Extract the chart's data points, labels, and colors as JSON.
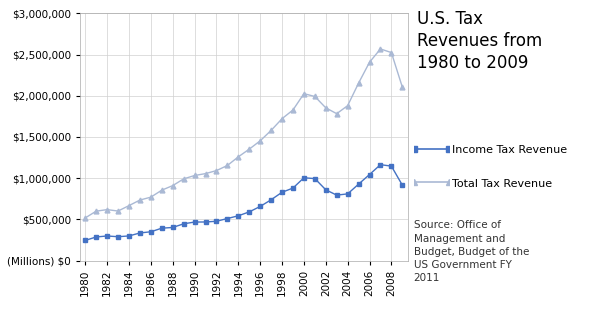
{
  "years": [
    1980,
    1981,
    1982,
    1983,
    1984,
    1985,
    1986,
    1987,
    1988,
    1989,
    1990,
    1991,
    1992,
    1993,
    1994,
    1995,
    1996,
    1997,
    1998,
    1999,
    2000,
    2001,
    2002,
    2003,
    2004,
    2005,
    2006,
    2007,
    2008,
    2009
  ],
  "income_tax": [
    244069,
    285917,
    297744,
    288938,
    298415,
    334531,
    349007,
    392557,
    401181,
    445690,
    466884,
    467827,
    476547,
    509680,
    543055,
    590244,
    656417,
    737466,
    828586,
    879480,
    1004462,
    994339,
    858345,
    793699,
    808959,
    927222,
    1043908,
    1163472,
    1145747,
    915308
  ],
  "total_tax": [
    517112,
    599272,
    617766,
    600562,
    666457,
    734057,
    769155,
    854143,
    909238,
    991105,
    1031969,
    1054988,
    1091631,
    1153539,
    1258566,
    1351830,
    1453062,
    1579292,
    1721798,
    1827454,
    2025218,
    1991191,
    1853136,
    1782322,
    1880114,
    2153611,
    2406876,
    2568000,
    2524000,
    2105000
  ],
  "income_tax_color": "#4472c4",
  "total_tax_color": "#aab9d4",
  "income_tax_label": "Income Tax Revenue",
  "total_tax_label": "Total Tax Revenue",
  "title": "U.S. Tax\nRevenues from\n1980 to 2009",
  "source_text": "Source: Office of\nManagement and\nBudget, Budget of the\nUS Government FY\n2011",
  "ylim": [
    0,
    3000000
  ],
  "yticks": [
    0,
    500000,
    1000000,
    1500000,
    2000000,
    2500000,
    3000000
  ],
  "background_color": "#ffffff",
  "grid_color": "#d0d0d0",
  "title_fontsize": 12,
  "legend_fontsize": 8,
  "source_fontsize": 7.5,
  "tick_fontsize": 7.5
}
